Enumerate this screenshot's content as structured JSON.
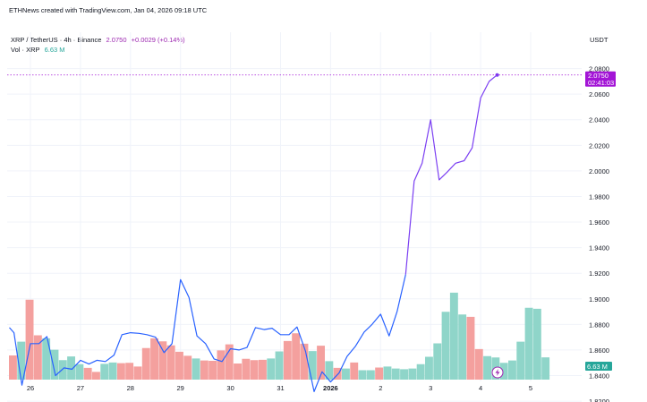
{
  "header": {
    "attribution": "ETHNews created with TradingView.com, Jan 04, 2026 09:18 UTC"
  },
  "legend": {
    "symbol": "XRP / TetherUS · 4h · Binance",
    "price": "2.0750",
    "change": "+0.0029 (+0.14%)",
    "vol_label": "Vol · XRP",
    "vol_value": "6.63 M"
  },
  "price_axis": {
    "currency": "USDT",
    "current_price": "2.0750",
    "countdown": "02:41:03",
    "current_volume": "6.63 M"
  },
  "colors": {
    "rise_line": "#7b3ff2",
    "base_line": "#2962ff",
    "vol_up": "#8fd5c9",
    "vol_down": "#f4a09e",
    "label_bg": "#a315d6",
    "vol_label_bg": "#26a69a"
  },
  "chart_data": {
    "type": "line",
    "title": "XRP / TetherUS · 4h · Binance",
    "xlabel": "",
    "ylabel": "USDT",
    "ylim": [
      1.8225,
      2.0865
    ],
    "y_ticks": [
      "2.0800",
      "2.0600",
      "2.0400",
      "2.0200",
      "2.0000",
      "1.9800",
      "1.9600",
      "1.9400",
      "1.9200",
      "1.9000",
      "1.8800",
      "1.8600",
      "1.8400",
      "1.8200"
    ],
    "x_ticks": [
      {
        "label": "26",
        "day": 0
      },
      {
        "label": "27",
        "day": 1
      },
      {
        "label": "28",
        "day": 2
      },
      {
        "label": "29",
        "day": 3
      },
      {
        "label": "30",
        "day": 4
      },
      {
        "label": "31",
        "day": 5
      },
      {
        "label": "2026",
        "day": 6
      },
      {
        "label": "2",
        "day": 7
      },
      {
        "label": "3",
        "day": 8
      },
      {
        "label": "4",
        "day": 9
      },
      {
        "label": "5",
        "day": 10
      }
    ],
    "series": [
      {
        "name": "XRP/USDT close",
        "x": [
          -0.42,
          -0.33,
          -0.17,
          0.0,
          0.17,
          0.33,
          0.5,
          0.67,
          0.83,
          1.0,
          1.17,
          1.33,
          1.5,
          1.67,
          1.83,
          2.0,
          2.17,
          2.33,
          2.5,
          2.67,
          2.83,
          3.0,
          3.17,
          3.33,
          3.5,
          3.67,
          3.83,
          4.0,
          4.17,
          4.33,
          4.5,
          4.67,
          4.83,
          5.0,
          5.17,
          5.33,
          5.5,
          5.67,
          5.83,
          6.0,
          6.17,
          6.33,
          6.5,
          6.67,
          6.83,
          7.0,
          7.17,
          7.33,
          7.5,
          7.67,
          7.83,
          8.0,
          8.17,
          8.33,
          8.5,
          8.67,
          8.83,
          9.0,
          9.17,
          9.33
        ],
        "values": [
          1.8775,
          1.8735,
          1.8325,
          1.865,
          1.865,
          1.8705,
          1.84,
          1.846,
          1.845,
          1.852,
          1.849,
          1.852,
          1.851,
          1.856,
          1.872,
          1.8735,
          1.873,
          1.872,
          1.87,
          1.858,
          1.865,
          1.915,
          1.901,
          1.871,
          1.865,
          1.853,
          1.851,
          1.861,
          1.86,
          1.862,
          1.8775,
          1.876,
          1.877,
          1.872,
          1.872,
          1.878,
          1.859,
          1.8275,
          1.843,
          1.835,
          1.842,
          1.855,
          1.863,
          1.874,
          1.88,
          1.888,
          1.871,
          1.89,
          1.919,
          1.992,
          2.006,
          2.04,
          1.993,
          1.999,
          2.006,
          2.008,
          2.018,
          2.057,
          2.07,
          2.075
        ]
      },
      {
        "name": "Volume",
        "unit": "M XRP",
        "values": [
          7.2,
          11.3,
          23.8,
          13.2,
          12.3,
          8.9,
          5.8,
          6.9,
          4.6,
          3.5,
          2.3,
          4.7,
          5.1,
          4.9,
          5.0,
          3.9,
          9.4,
          12.3,
          11.4,
          10.2,
          8.3,
          7.1,
          6.3,
          5.7,
          5.6,
          8.7,
          10.5,
          4.8,
          6.2,
          5.8,
          5.9,
          6.3,
          8.4,
          11.5,
          13.8,
          10.7,
          8.5,
          10.1,
          5.5,
          3.5,
          3.3,
          5.1,
          2.8,
          2.8,
          3.6,
          3.9,
          3.3,
          3.1,
          3.3,
          4.6,
          6.8,
          10.8,
          20.2,
          25.9,
          19.4,
          18.7,
          9.1,
          7.0,
          6.6,
          5.0,
          5.7,
          11.3,
          21.4,
          21.1,
          6.63
        ],
        "direction": [
          "d",
          "u",
          "d",
          "d",
          "u",
          "u",
          "u",
          "u",
          "u",
          "d",
          "d",
          "u",
          "u",
          "d",
          "d",
          "d",
          "d",
          "d",
          "d",
          "d",
          "d",
          "d",
          "u",
          "d",
          "d",
          "d",
          "d",
          "d",
          "d",
          "d",
          "d",
          "u",
          "u",
          "d",
          "d",
          "d",
          "u",
          "d",
          "u",
          "d",
          "u",
          "d",
          "u",
          "u",
          "d",
          "u",
          "u",
          "u",
          "u",
          "u",
          "u",
          "u",
          "u",
          "u",
          "u",
          "d",
          "d",
          "u",
          "u",
          "u",
          "u",
          "u",
          "u",
          "u",
          "u"
        ]
      }
    ],
    "last_point": 2.075,
    "volume_ylim": [
      0,
      30
    ],
    "current_volume": 6.63
  }
}
